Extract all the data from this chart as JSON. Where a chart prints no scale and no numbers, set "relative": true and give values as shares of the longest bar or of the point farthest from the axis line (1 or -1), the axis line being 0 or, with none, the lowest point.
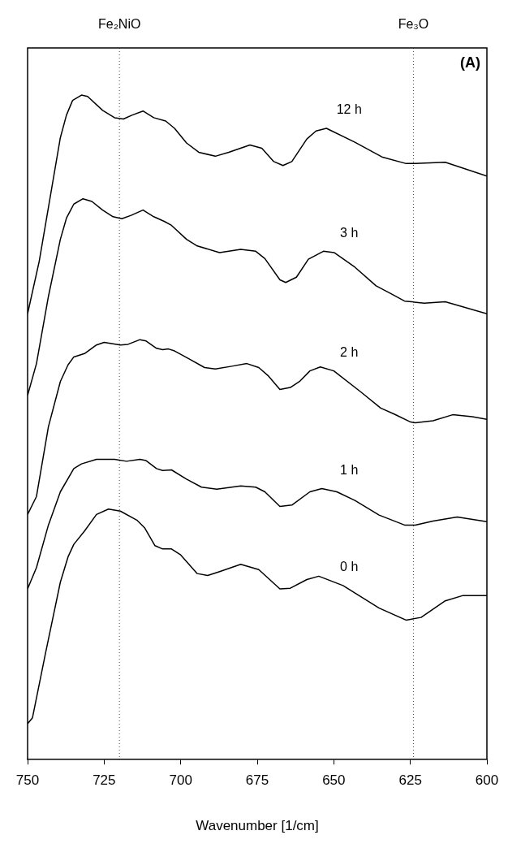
{
  "chart_data": {
    "type": "line",
    "relative": true,
    "xlabel": "Wavenumber [1/cm]",
    "xlim": [
      750,
      600
    ],
    "xticks": [
      750,
      725,
      700,
      675,
      650,
      625,
      600
    ],
    "legend": false,
    "marker": "none",
    "line_style": "solid",
    "annotations": [
      "(A)"
    ],
    "ref_lines": [
      {
        "axis": "x",
        "value": 720,
        "label": "Fe₂NiO",
        "line_style": "dotted"
      },
      {
        "axis": "x",
        "value": 624,
        "label": "Fe₃O",
        "line_style": "dotted"
      }
    ],
    "series": [
      {
        "name": "12 h",
        "color": "#000000",
        "x": [
          750,
          746.2,
          739.3,
          737.3,
          735.3,
          732.4,
          730.4,
          725.5,
          721.6,
          718.7,
          715.8,
          712.3,
          708.8,
          704.9,
          702,
          698.1,
          694.1,
          688.7,
          684.3,
          677.4,
          673.5,
          669.6,
          666.6,
          663.7,
          658.8,
          655.8,
          652.4,
          643.1,
          634.3,
          626.4,
          623.4,
          613.6,
          600
        ],
        "values": [
          0.671,
          0.75,
          0.936,
          0.97,
          0.992,
          1,
          0.998,
          0.977,
          0.966,
          0.964,
          0.97,
          0.976,
          0.966,
          0.961,
          0.95,
          0.928,
          0.914,
          0.908,
          0.914,
          0.925,
          0.92,
          0.9,
          0.894,
          0.9,
          0.934,
          0.946,
          0.95,
          0.929,
          0.907,
          0.897,
          0.897,
          0.899,
          0.878
        ]
      },
      {
        "name": "3 h",
        "color": "#000000",
        "x": [
          750,
          747.1,
          743.2,
          739.3,
          737.3,
          734.9,
          731.9,
          729,
          725.5,
          722.1,
          719.2,
          716.2,
          712.3,
          708.8,
          705.4,
          703,
          698.1,
          694.6,
          687.3,
          680.4,
          675.5,
          672.5,
          667.6,
          665.7,
          662.2,
          658.3,
          653.4,
          649.9,
          643.1,
          636.2,
          631.3,
          626.9,
          620.5,
          613.6,
          600
        ],
        "values": [
          0.548,
          0.596,
          0.697,
          0.783,
          0.815,
          0.836,
          0.844,
          0.84,
          0.827,
          0.817,
          0.814,
          0.819,
          0.827,
          0.817,
          0.81,
          0.804,
          0.783,
          0.773,
          0.763,
          0.768,
          0.765,
          0.754,
          0.722,
          0.718,
          0.726,
          0.753,
          0.765,
          0.763,
          0.741,
          0.713,
          0.701,
          0.69,
          0.687,
          0.689,
          0.671
        ]
      },
      {
        "name": "2 h",
        "color": "#000000",
        "x": [
          750,
          747.1,
          743.2,
          739.3,
          736.8,
          734.9,
          731.4,
          727.5,
          725,
          719.7,
          717.2,
          713.3,
          711.3,
          707.9,
          705.9,
          704,
          702,
          697.6,
          692.2,
          688.7,
          683.3,
          678.4,
          674.5,
          671.5,
          667.6,
          664.2,
          661.2,
          657.8,
          654.4,
          650,
          641.1,
          634.7,
          630.3,
          624.9,
          623.4,
          617.6,
          611.2,
          604.8,
          600
        ],
        "values": [
          0.369,
          0.396,
          0.501,
          0.569,
          0.594,
          0.606,
          0.611,
          0.624,
          0.628,
          0.624,
          0.625,
          0.632,
          0.63,
          0.619,
          0.617,
          0.618,
          0.615,
          0.604,
          0.59,
          0.588,
          0.592,
          0.596,
          0.59,
          0.578,
          0.557,
          0.56,
          0.569,
          0.585,
          0.591,
          0.585,
          0.553,
          0.529,
          0.52,
          0.508,
          0.507,
          0.51,
          0.519,
          0.516,
          0.512
        ]
      },
      {
        "name": "1 h",
        "color": "#000000",
        "x": [
          750,
          747.1,
          743.2,
          739.3,
          734.9,
          732.4,
          727.5,
          721.6,
          717.7,
          713.3,
          711.3,
          707.9,
          705.9,
          703,
          698.1,
          693.2,
          688.2,
          680.4,
          675.5,
          672.5,
          667.6,
          663.7,
          657.8,
          653.9,
          649,
          643.1,
          635.2,
          626.9,
          623.4,
          617.6,
          609.7,
          600
        ],
        "values": [
          0.257,
          0.289,
          0.353,
          0.403,
          0.438,
          0.445,
          0.452,
          0.452,
          0.449,
          0.452,
          0.45,
          0.438,
          0.435,
          0.436,
          0.422,
          0.41,
          0.407,
          0.412,
          0.41,
          0.403,
          0.381,
          0.383,
          0.403,
          0.408,
          0.403,
          0.39,
          0.368,
          0.353,
          0.353,
          0.359,
          0.365,
          0.358
        ]
      },
      {
        "name": "0 h",
        "color": "#000000",
        "x": [
          750,
          748.4,
          744.2,
          739.3,
          736.8,
          734.9,
          731.4,
          727.5,
          723.6,
          719.7,
          714.2,
          711.8,
          708.4,
          705.9,
          703,
          700,
          694.6,
          691.2,
          687.3,
          680.4,
          674.5,
          667.6,
          664.2,
          658.8,
          654.9,
          647,
          635.2,
          626.4,
          621.5,
          613.6,
          607.8,
          600
        ],
        "values": [
          0.054,
          0.063,
          0.159,
          0.267,
          0.305,
          0.324,
          0.344,
          0.369,
          0.377,
          0.374,
          0.36,
          0.349,
          0.322,
          0.317,
          0.317,
          0.308,
          0.28,
          0.277,
          0.283,
          0.294,
          0.286,
          0.257,
          0.258,
          0.271,
          0.276,
          0.262,
          0.228,
          0.21,
          0.214,
          0.239,
          0.247,
          0.247
        ]
      }
    ]
  }
}
